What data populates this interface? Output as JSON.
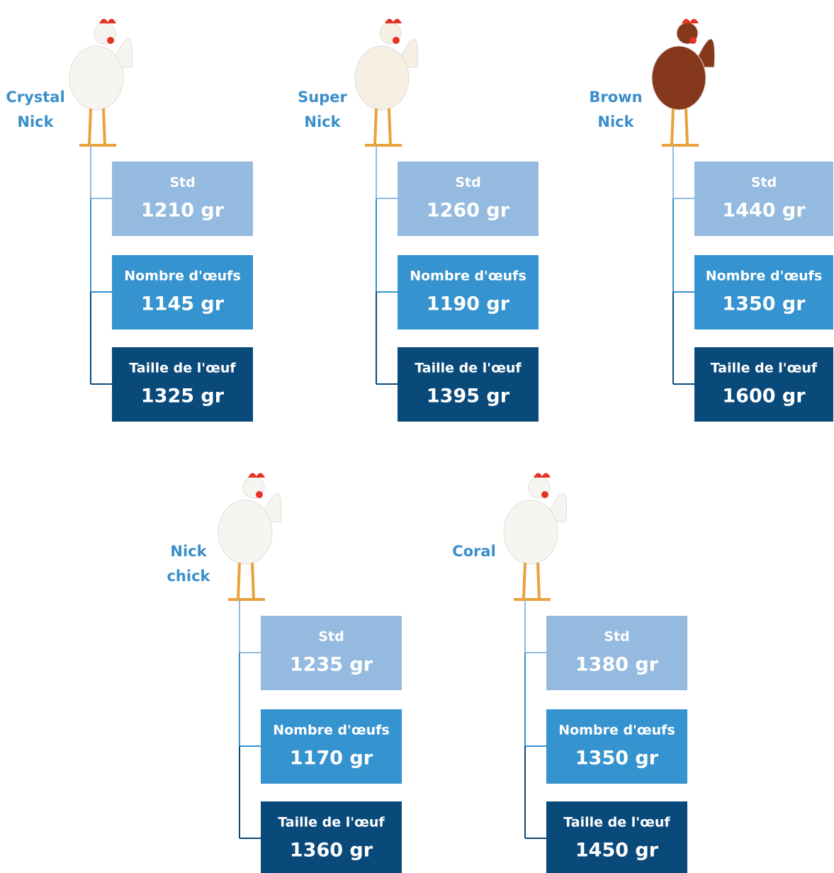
{
  "breeds": [
    {
      "name_lines": [
        "Crystal",
        "Nick"
      ],
      "rows": [
        {
          "label": "Std",
          "value": "1210 gr"
        },
        {
          "label": "Nombre d'œufs",
          "value": "1145 gr"
        },
        {
          "label": "Taille de l'œuf",
          "value": "1325 gr"
        }
      ]
    },
    {
      "name_lines": [
        "Super",
        "Nick"
      ],
      "rows": [
        {
          "label": "Std",
          "value": "1260 gr"
        },
        {
          "label": "Nombre d'œufs",
          "value": "1190 gr"
        },
        {
          "label": "Taille de l'œuf",
          "value": "1395 gr"
        }
      ]
    },
    {
      "name_lines": [
        "Brown",
        "Nick"
      ],
      "rows": [
        {
          "label": "Std",
          "value": "1440 gr"
        },
        {
          "label": "Nombre d'œufs",
          "value": "1350 gr"
        },
        {
          "label": "Taille de l'œuf",
          "value": "1600 gr"
        }
      ]
    },
    {
      "name_lines": [
        "Nick",
        "chick"
      ],
      "rows": [
        {
          "label": "Std",
          "value": "1235 gr"
        },
        {
          "label": "Nombre d'œufs",
          "value": "1170 gr"
        },
        {
          "label": "Taille de l'œuf",
          "value": "1360 gr"
        }
      ]
    },
    {
      "name_lines": [
        "Coral"
      ],
      "rows": [
        {
          "label": "Std",
          "value": "1380 gr"
        },
        {
          "label": "Nombre d'œufs",
          "value": "1350 gr"
        },
        {
          "label": "Taille de l'œuf",
          "value": "1450 gr"
        }
      ]
    }
  ]
}
